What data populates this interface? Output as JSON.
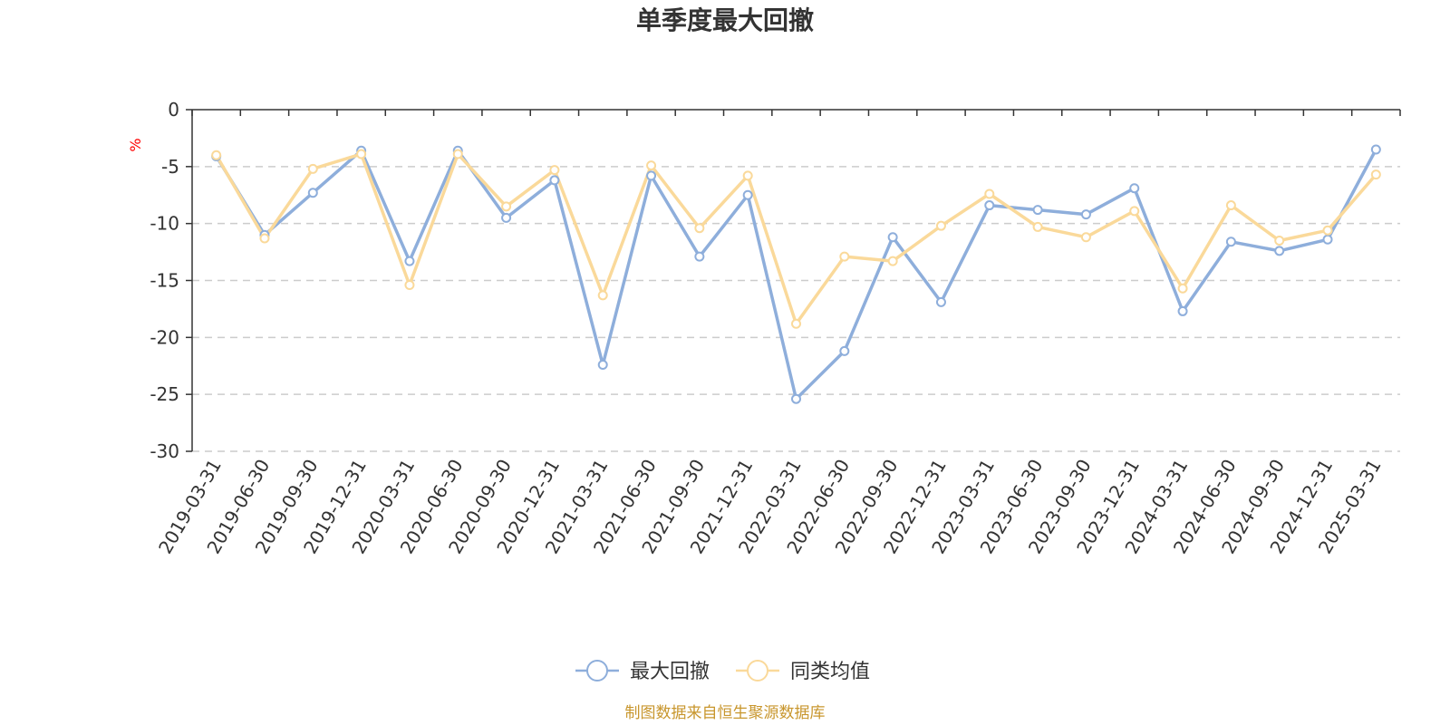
{
  "chart_data": {
    "type": "line",
    "title": "单季度最大回撤",
    "ylabel": "%",
    "ylim": [
      -30,
      0
    ],
    "yticks": [
      0,
      -5,
      -10,
      -15,
      -20,
      -25,
      -30
    ],
    "grid": true,
    "legend_position": "bottom-center",
    "categories": [
      "2019-03-31",
      "2019-06-30",
      "2019-09-30",
      "2019-12-31",
      "2020-03-31",
      "2020-06-30",
      "2020-09-30",
      "2020-12-31",
      "2021-03-31",
      "2021-06-30",
      "2021-09-30",
      "2021-12-31",
      "2022-03-31",
      "2022-06-30",
      "2022-09-30",
      "2022-12-31",
      "2023-03-31",
      "2023-06-30",
      "2023-09-30",
      "2023-12-31",
      "2024-03-31",
      "2024-06-30",
      "2024-09-30",
      "2024-12-31",
      "2025-03-31"
    ],
    "series": [
      {
        "name": "最大回撤",
        "color": "#8eaedb",
        "values": [
          -4.1,
          -11.0,
          -7.3,
          -3.6,
          -13.3,
          -3.6,
          -9.5,
          -6.2,
          -22.4,
          -5.8,
          -12.9,
          -7.5,
          -25.4,
          -21.2,
          -11.2,
          -16.9,
          -8.4,
          -8.8,
          -9.2,
          -6.9,
          -17.7,
          -11.6,
          -12.4,
          -11.4,
          -3.5
        ]
      },
      {
        "name": "同类均值",
        "color": "#fad99a",
        "values": [
          -4.0,
          -11.3,
          -5.2,
          -3.9,
          -15.4,
          -3.9,
          -8.5,
          -5.3,
          -16.3,
          -4.9,
          -10.4,
          -5.8,
          -18.8,
          -12.9,
          -13.3,
          -10.2,
          -7.4,
          -10.3,
          -11.2,
          -8.9,
          -15.7,
          -8.4,
          -11.5,
          -10.6,
          -5.7
        ]
      }
    ]
  },
  "footer": {
    "source_text": "制图数据来自恒生聚源数据库",
    "source_color": "#c8962d"
  }
}
